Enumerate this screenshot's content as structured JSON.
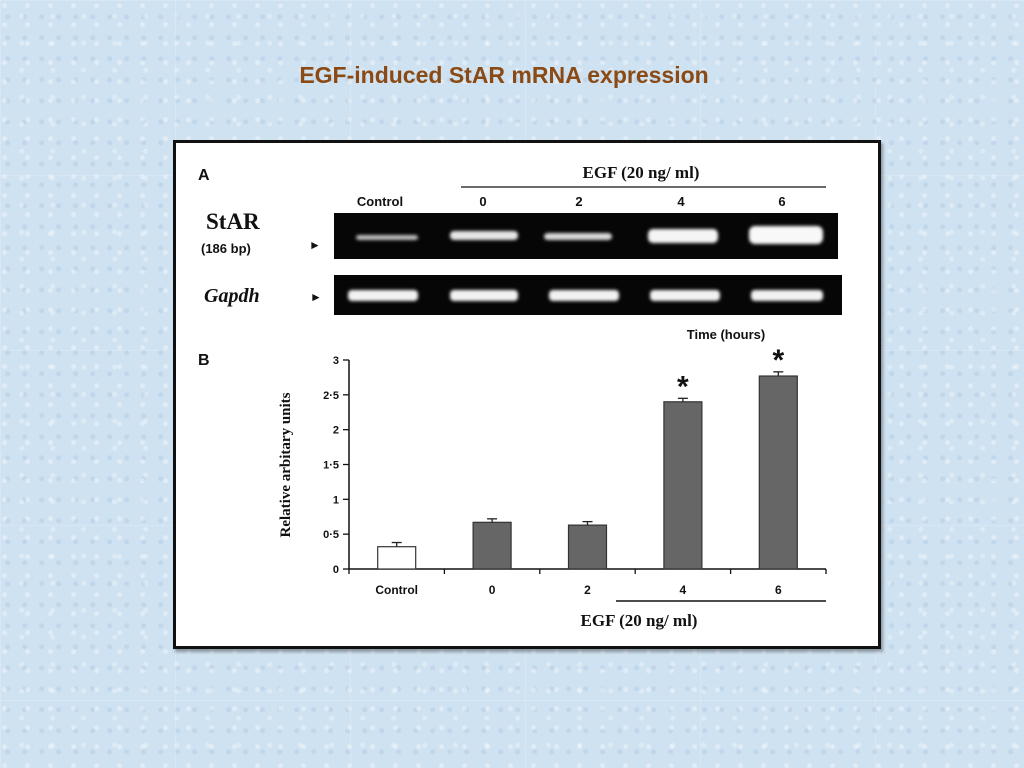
{
  "slide": {
    "title": "EGF-induced StAR mRNA expression",
    "title_color": "#8b4a14",
    "background_color": "#cfe2f1"
  },
  "figure": {
    "panel_a": {
      "label": "A",
      "treatment_header": "EGF (20 ng/ ml)",
      "lane_labels": [
        "Control",
        "0",
        "2",
        "4",
        "6"
      ],
      "genes": [
        {
          "name": "StAR",
          "size": "(186 bp)",
          "arrow": "►"
        },
        {
          "name": "Gapdh",
          "arrow": "►"
        }
      ],
      "time_label": "Time (hours)"
    },
    "panel_b": {
      "label": "B"
    }
  },
  "chart_data": {
    "type": "bar",
    "categories": [
      "Control",
      "0",
      "2",
      "4",
      "6"
    ],
    "values": [
      0.32,
      0.67,
      0.63,
      2.4,
      2.77
    ],
    "errors": [
      0.06,
      0.05,
      0.05,
      0.05,
      0.06
    ],
    "significant": [
      false,
      false,
      false,
      true,
      true
    ],
    "significance_marker": "*",
    "ylabel": "Relative arbitary units",
    "xlabel": "EGF (20 ng/ ml)",
    "ylim": [
      0,
      3
    ],
    "yticks": [
      0,
      0.5,
      1,
      1.5,
      2,
      2.5,
      3
    ],
    "ytick_labels": [
      "0",
      "0·5",
      "1",
      "1·5",
      "2",
      "2·5",
      "3"
    ],
    "bar_colors": [
      "#ffffff",
      "#666666",
      "#666666",
      "#666666",
      "#666666"
    ],
    "grid": false
  }
}
